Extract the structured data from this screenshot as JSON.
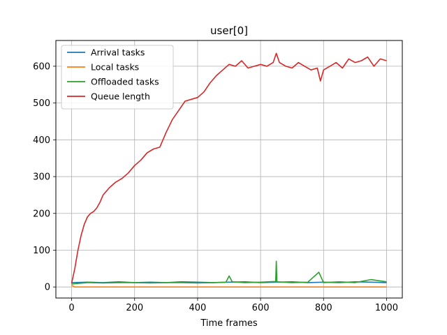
{
  "chart_data": {
    "type": "line",
    "title": "user[0]",
    "xlabel": "Time frames",
    "ylabel": "",
    "xlim": [
      -50,
      1050
    ],
    "ylim": [
      -30,
      670
    ],
    "xticks": [
      0,
      200,
      400,
      600,
      800,
      1000
    ],
    "yticks": [
      0,
      100,
      200,
      300,
      400,
      500,
      600
    ],
    "grid": true,
    "legend_position": "upper left",
    "series": [
      {
        "name": "Arrival tasks",
        "color": "#1f77b4",
        "x": [
          0,
          50,
          100,
          150,
          200,
          250,
          300,
          350,
          400,
          450,
          500,
          550,
          600,
          650,
          700,
          750,
          800,
          850,
          900,
          950,
          1000
        ],
        "y": [
          12,
          13,
          12,
          14,
          12,
          13,
          12,
          14,
          13,
          12,
          13,
          14,
          12,
          13,
          14,
          12,
          13,
          12,
          14,
          13,
          12
        ]
      },
      {
        "name": "Local tasks",
        "color": "#ff7f0e",
        "x": [
          0,
          10,
          50,
          100,
          200,
          300,
          400,
          500,
          600,
          700,
          800,
          900,
          1000
        ],
        "y": [
          5,
          0,
          0,
          0,
          0,
          0,
          0,
          0,
          0,
          0,
          0,
          0,
          0
        ]
      },
      {
        "name": "Offloaded tasks",
        "color": "#2ca02c",
        "x": [
          0,
          50,
          100,
          150,
          200,
          250,
          300,
          350,
          400,
          450,
          490,
          500,
          510,
          550,
          600,
          648,
          650,
          652,
          700,
          750,
          785,
          800,
          850,
          900,
          950,
          1000
        ],
        "y": [
          8,
          12,
          11,
          12,
          12,
          11,
          12,
          12,
          11,
          12,
          13,
          30,
          14,
          12,
          13,
          15,
          70,
          14,
          12,
          13,
          40,
          12,
          14,
          12,
          20,
          14
        ]
      },
      {
        "name": "Queue length",
        "color": "#d62728",
        "x": [
          0,
          5,
          10,
          20,
          30,
          40,
          50,
          60,
          70,
          80,
          90,
          100,
          120,
          140,
          160,
          180,
          200,
          220,
          240,
          260,
          280,
          300,
          320,
          340,
          360,
          380,
          400,
          420,
          440,
          460,
          480,
          500,
          520,
          540,
          560,
          580,
          600,
          620,
          640,
          650,
          660,
          680,
          700,
          720,
          740,
          760,
          780,
          790,
          800,
          820,
          840,
          860,
          880,
          900,
          920,
          940,
          960,
          980,
          1000
        ],
        "y": [
          10,
          30,
          50,
          100,
          140,
          170,
          190,
          200,
          205,
          215,
          230,
          250,
          270,
          285,
          295,
          310,
          330,
          345,
          365,
          375,
          380,
          420,
          455,
          480,
          505,
          510,
          515,
          530,
          555,
          575,
          590,
          605,
          600,
          615,
          595,
          600,
          605,
          600,
          610,
          635,
          610,
          600,
          595,
          610,
          600,
          590,
          595,
          560,
          590,
          600,
          610,
          595,
          620,
          610,
          615,
          625,
          600,
          620,
          615
        ]
      }
    ]
  }
}
